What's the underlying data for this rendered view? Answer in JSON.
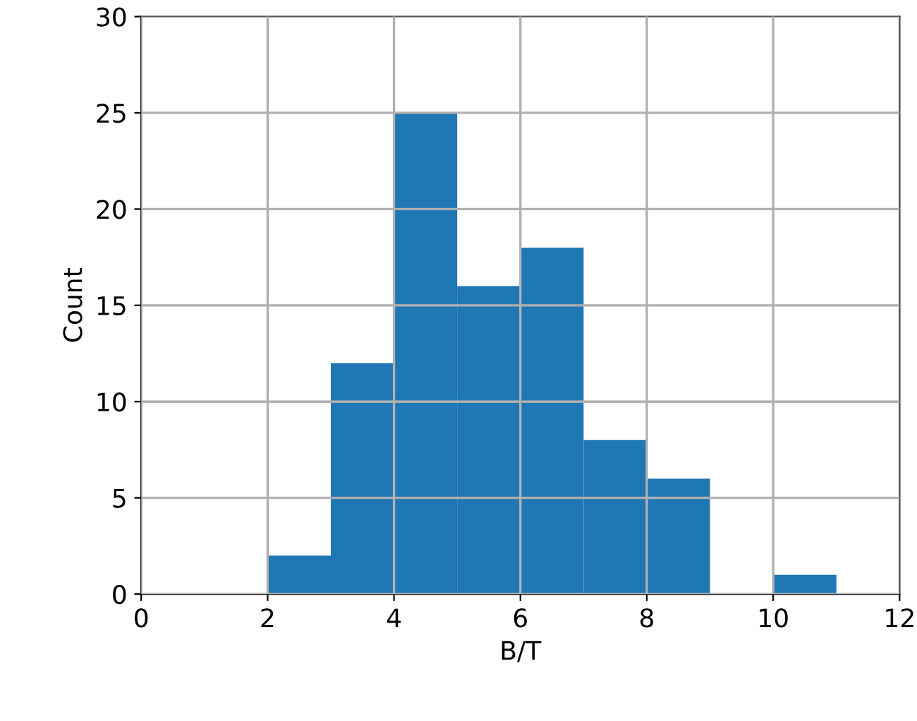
{
  "chart_data": {
    "type": "histogram",
    "xlabel": "B/T",
    "ylabel": "Count",
    "bins": [
      2,
      3,
      4,
      5,
      6,
      7,
      8,
      9,
      10,
      11
    ],
    "values": [
      2,
      12,
      25,
      16,
      18,
      8,
      6,
      0,
      1
    ],
    "color": "#1f77b4",
    "xlim": [
      0,
      12
    ],
    "xticks": [
      0,
      2,
      4,
      6,
      8,
      10,
      12
    ],
    "ylim": [
      0,
      30
    ],
    "yticks": [
      0,
      5,
      10,
      15,
      20,
      25,
      30
    ],
    "grid": true
  }
}
